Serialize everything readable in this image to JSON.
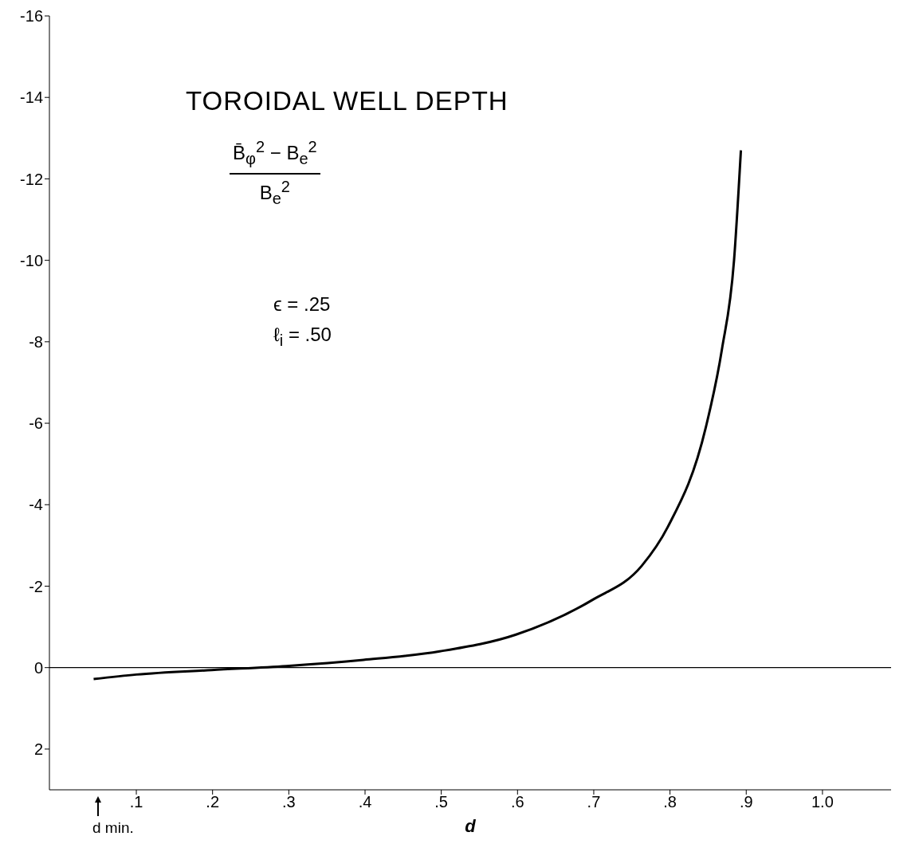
{
  "chart_data": {
    "type": "line",
    "title": "TOROIDAL WELL DEPTH",
    "xlabel": "d",
    "annotations": [
      "B̄$_{φ}$$^{2}$ − B$_{e}$$^{2}$",
      "B$_{e}$$^{2}$",
      "ϵ = .25",
      "ℓ$_{i}$ = .50",
      "d min."
    ],
    "x": [
      0.044,
      0.1,
      0.199,
      0.297,
      0.398,
      0.498,
      0.598,
      0.698,
      0.763,
      0.797,
      0.847,
      0.868,
      0.884,
      0.893
    ],
    "series": [
      {
        "color": "#000000",
        "values": [
          0.28,
          0.17,
          0.06,
          -0.04,
          -0.19,
          -0.4,
          -0.81,
          -1.66,
          -2.5,
          -3.45,
          -5.9,
          -7.8,
          -10,
          -12.7
        ]
      }
    ],
    "xlim": [
      -0.014,
      1.09
    ],
    "xticks": [
      {
        "value": 0.1,
        "label": ".1"
      },
      {
        "value": 0.2,
        "label": ".2"
      },
      {
        "value": 0.3,
        "label": ".3"
      },
      {
        "value": 0.4,
        "label": ".4"
      },
      {
        "value": 0.5,
        "label": ".5"
      },
      {
        "value": 0.6,
        "label": ".6"
      },
      {
        "value": 0.7,
        "label": ".7"
      },
      {
        "value": 0.8,
        "label": ".8"
      },
      {
        "value": 0.9,
        "label": ".9"
      },
      {
        "value": 1.0,
        "label": "1.0"
      }
    ],
    "ylim": [
      3,
      -16
    ],
    "yticks": [
      -16,
      -14,
      -12,
      -10,
      -8,
      -6,
      -4,
      -2,
      0,
      2
    ],
    "ref_lines": [
      {
        "axis": "y",
        "value": 0,
        "color": "#000000"
      }
    ],
    "grid": false,
    "legend": false,
    "marker": "none",
    "line_style": "solid"
  }
}
